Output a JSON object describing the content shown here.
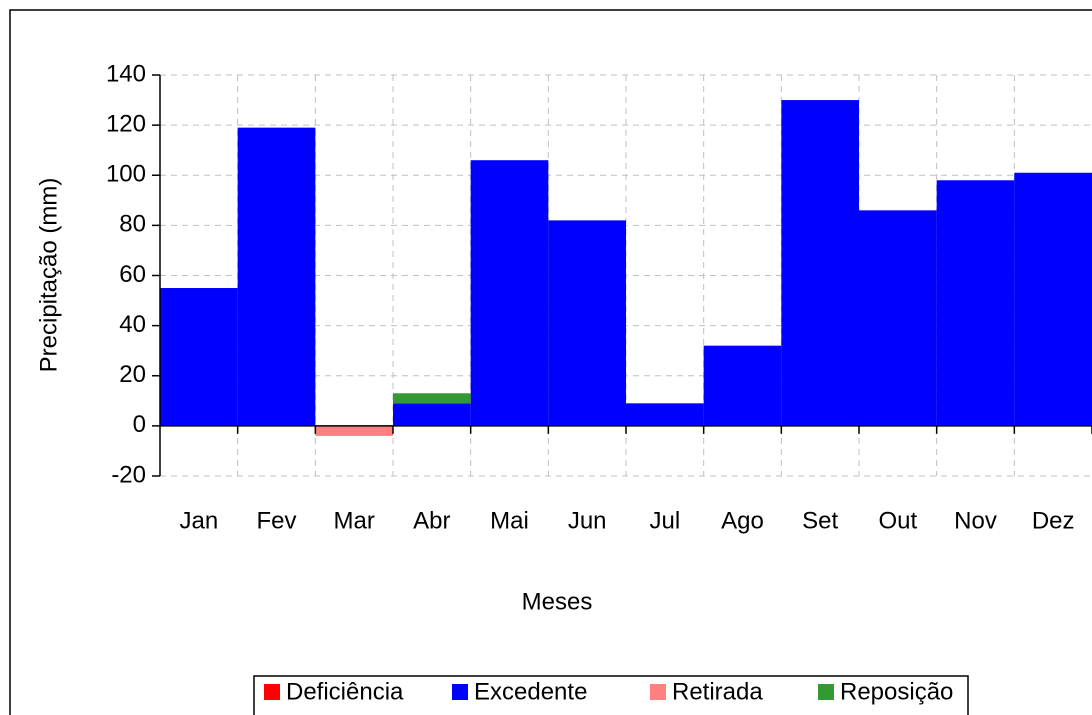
{
  "chart_data": {
    "type": "bar",
    "stacked": true,
    "x_label": "Meses",
    "y_label": "Precipitação (mm)",
    "categories": [
      "Jan",
      "Fev",
      "Mar",
      "Abr",
      "Mai",
      "Jun",
      "Jul",
      "Ago",
      "Set",
      "Out",
      "Nov",
      "Dez"
    ],
    "series": [
      {
        "name": "Deficiência",
        "color": "#ff0000",
        "values": [
          0,
          0,
          0,
          0,
          0,
          0,
          0,
          0,
          0,
          0,
          0,
          0
        ]
      },
      {
        "name": "Excedente",
        "color": "#0000ff",
        "values": [
          55,
          119,
          0,
          9,
          106,
          82,
          9,
          32,
          130,
          86,
          98,
          101
        ]
      },
      {
        "name": "Retirada",
        "color": "#ff8080",
        "values": [
          0,
          0,
          -4,
          0,
          0,
          0,
          0,
          0,
          0,
          0,
          0,
          0
        ]
      },
      {
        "name": "Reposição",
        "color": "#339933",
        "values": [
          0,
          0,
          0,
          4,
          0,
          0,
          0,
          0,
          0,
          0,
          0,
          0
        ]
      }
    ],
    "ylim": [
      -20,
      140
    ],
    "yticks": [
      -20,
      0,
      20,
      40,
      60,
      80,
      100,
      120,
      140
    ],
    "grid": true,
    "legend": "bottom"
  }
}
